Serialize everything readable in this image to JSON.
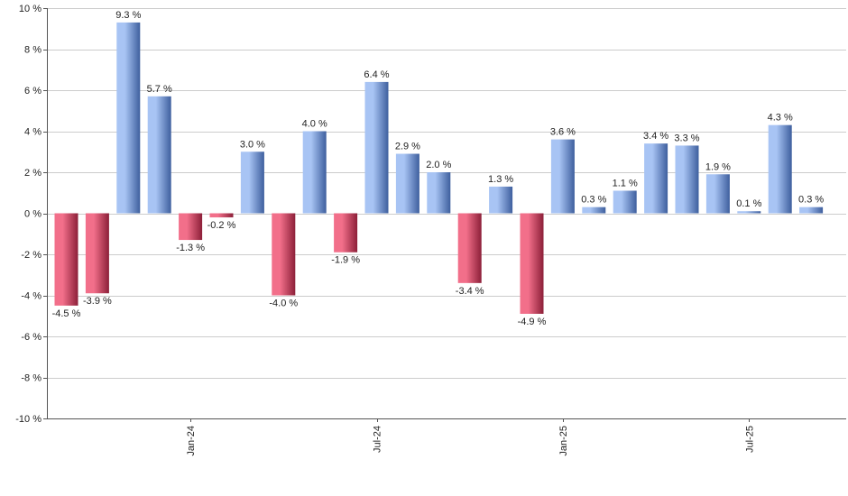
{
  "chart_data": {
    "type": "bar",
    "title": "",
    "xlabel": "",
    "ylabel": "",
    "ylim": [
      -10,
      10
    ],
    "yticks": [
      10,
      8,
      6,
      4,
      2,
      0,
      -2,
      -4,
      -6,
      -8,
      -10
    ],
    "ytick_labels": [
      "10 %",
      "8 %",
      "6 %",
      "4 %",
      "2 %",
      "0 %",
      "-2 %",
      "-4 %",
      "-6 %",
      "-8 %",
      "-10 %"
    ],
    "grid": true,
    "x_tick_labels": [
      {
        "label": "Jan-24",
        "index": 4
      },
      {
        "label": "Jul-24",
        "index": 10
      },
      {
        "label": "Jan-25",
        "index": 16
      },
      {
        "label": "Jul-25",
        "index": 22
      }
    ],
    "values": [
      -4.5,
      -3.9,
      9.3,
      5.7,
      -1.3,
      -0.2,
      3.0,
      -4.0,
      4.0,
      -1.9,
      6.4,
      2.9,
      2.0,
      -3.4,
      1.3,
      -4.9,
      3.6,
      0.3,
      1.1,
      3.4,
      3.3,
      1.9,
      0.1,
      4.3,
      0.3
    ],
    "value_labels": [
      "-4.5 %",
      "-3.9 %",
      "9.3 %",
      "5.7 %",
      "-1.3 %",
      "-0.2 %",
      "3.0 %",
      "-4.0 %",
      "4.0 %",
      "-1.9 %",
      "6.4 %",
      "2.9 %",
      "2.0 %",
      "-3.4 %",
      "1.3 %",
      "-4.9 %",
      "3.6 %",
      "0.3 %",
      "1.1 %",
      "3.4 %",
      "3.3 %",
      "1.9 %",
      "0.1 %",
      "4.3 %",
      "0.3 %"
    ],
    "colors": {
      "positive_light": "#a8c4f4",
      "positive_dark": "#3e5f9e",
      "negative_light": "#f26f8a",
      "negative_dark": "#8c1f38",
      "grid": "#cccccc",
      "axis": "#555555"
    }
  }
}
